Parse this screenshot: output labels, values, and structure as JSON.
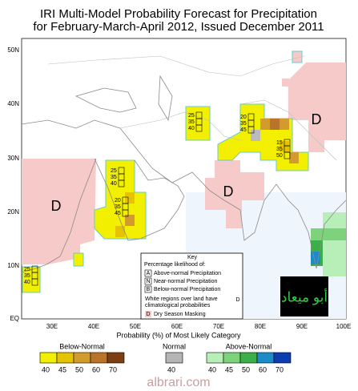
{
  "title": [
    "IRI Multi-Model Probability Forecast for Precipitation",
    "for February-March-April 2012, Issued December 2011"
  ],
  "map": {
    "lat_labels": [
      "50N",
      "40N",
      "30N",
      "20N",
      "10N",
      "EQ"
    ],
    "lon_labels": [
      "30E",
      "40E",
      "50E",
      "60E",
      "70E",
      "80E",
      "90E",
      "100E"
    ],
    "dry_labels": [
      "D",
      "D",
      "D",
      "D"
    ],
    "probability_boxes": [
      [
        "25",
        "35",
        "40"
      ],
      [
        "20",
        "35",
        "45"
      ],
      [
        "15",
        "35",
        "50"
      ],
      [
        "25",
        "35",
        "40"
      ],
      [
        "20",
        "35",
        "45"
      ],
      [
        "25",
        "35",
        "40"
      ]
    ]
  },
  "key": {
    "title": "Key",
    "subtitle": "Percentage likelihood of:",
    "items": [
      [
        "A",
        "Above-normal Precipitation"
      ],
      [
        "N",
        "Near-normal Precipitation"
      ],
      [
        "B",
        "Below-normal Precipitation"
      ]
    ],
    "note": [
      "White regions over land have",
      "climatological probabilities"
    ],
    "dry": [
      "D",
      "Dry Season Masking"
    ]
  },
  "colorbar": {
    "title": "Probability (%) of Most Likely Category",
    "groups": [
      {
        "name": "Below-Normal",
        "ticks": [
          40,
          45,
          50,
          60,
          70
        ],
        "colors": [
          "#f2ef00",
          "#e6c300",
          "#d39a2e",
          "#b9742a",
          "#7b3f12"
        ]
      },
      {
        "name": "Normal",
        "ticks": [
          40
        ],
        "colors": [
          "#b5b5b5"
        ]
      },
      {
        "name": "Above-Normal",
        "ticks": [
          40,
          45,
          50,
          60,
          70
        ],
        "colors": [
          "#b8efb8",
          "#7cd37c",
          "#3cae4a",
          "#1d8bc8",
          "#0b3cb0"
        ]
      }
    ]
  },
  "watermarks": [
    "أبو ميعاد",
    "albrari.com"
  ]
}
